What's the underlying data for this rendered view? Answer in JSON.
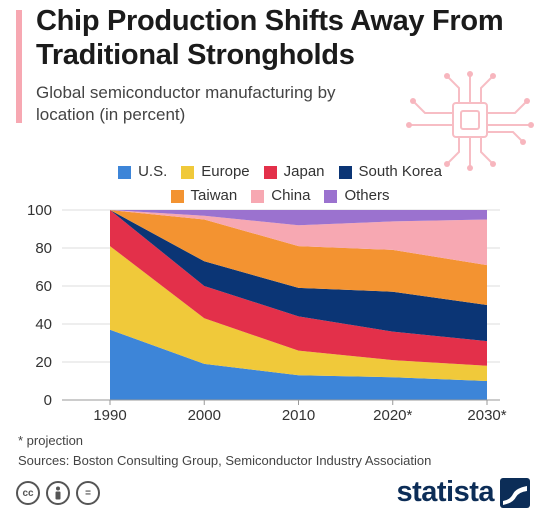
{
  "header": {
    "title": "Chip Production Shifts Away From Traditional Strongholds",
    "subtitle": "Global semiconductor manufacturing by location (in percent)"
  },
  "colors": {
    "accent": "#f7a8b2",
    "brand": "#0c2d57"
  },
  "chart_data": {
    "type": "area",
    "stacked": true,
    "x": [
      "1990",
      "2000",
      "2010",
      "2020*",
      "2030*"
    ],
    "ylim": [
      0,
      100
    ],
    "yticks": [
      0,
      20,
      40,
      60,
      80,
      100
    ],
    "xlabel": "",
    "ylabel": "",
    "legend_position": "top",
    "series": [
      {
        "name": "U.S.",
        "color": "#3d85d8",
        "values": [
          37,
          19,
          13,
          12,
          10
        ]
      },
      {
        "name": "Europe",
        "color": "#f0c93a",
        "values": [
          44,
          24,
          13,
          9,
          8
        ]
      },
      {
        "name": "Japan",
        "color": "#e3304a",
        "values": [
          19,
          17,
          18,
          15,
          13
        ]
      },
      {
        "name": "South Korea",
        "color": "#0b3575",
        "values": [
          0,
          13,
          15,
          21,
          19
        ]
      },
      {
        "name": "Taiwan",
        "color": "#f39331",
        "values": [
          0,
          22,
          22,
          22,
          21
        ]
      },
      {
        "name": "China",
        "color": "#f7a8b2",
        "values": [
          0,
          2,
          11,
          15,
          24
        ]
      },
      {
        "name": "Others",
        "color": "#9b72cf",
        "values": [
          0,
          3,
          8,
          6,
          5
        ]
      }
    ]
  },
  "footnotes": {
    "projection": "* projection",
    "sources": "Sources: Boston Consulting Group, Semiconductor Industry Association"
  },
  "brand": {
    "name": "statista"
  },
  "license": {
    "cc": "cc",
    "equals": "="
  }
}
